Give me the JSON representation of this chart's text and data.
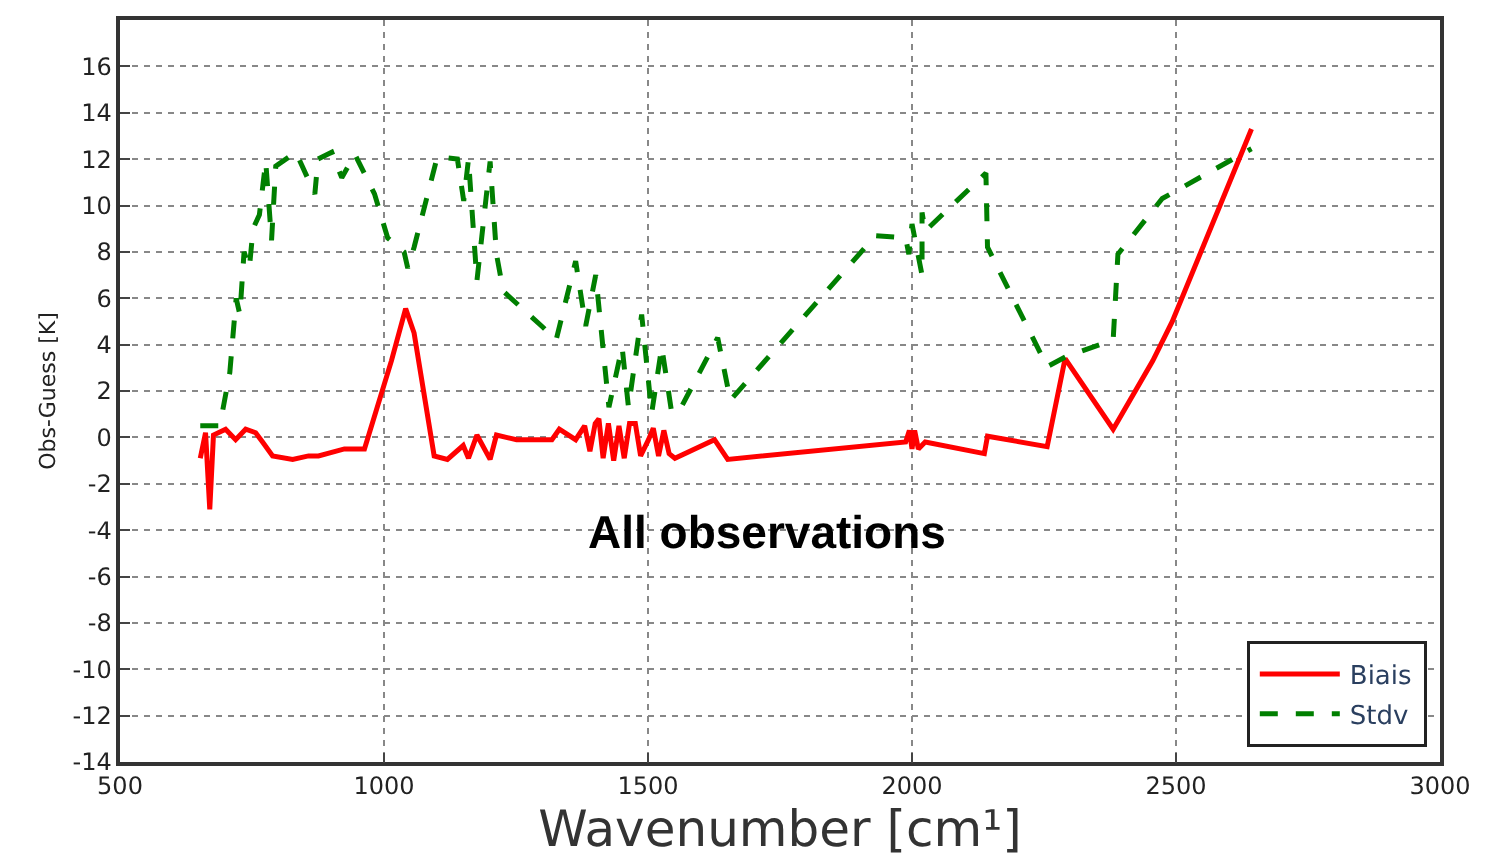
{
  "chart_data": {
    "type": "line",
    "xlabel": "Wavenumber [cm¹]",
    "ylabel": "Obs-Guess [K]",
    "annotations": [
      "All observations"
    ],
    "xlim": [
      500,
      3000
    ],
    "xticks": [
      500,
      1000,
      1500,
      2000,
      2500,
      3000
    ],
    "ylim": [
      -14,
      18
    ],
    "yticks": [
      -14,
      -12,
      -10,
      -8,
      -6,
      -4,
      -2,
      0,
      2,
      4,
      6,
      8,
      10,
      12,
      14,
      16
    ],
    "grid": true,
    "legend": "bottom right",
    "series": [
      {
        "name": "Biais",
        "color": "#ff0000",
        "line_style": "solid",
        "x": [
          652,
          662,
          670,
          677,
          700,
          719,
          738,
          757,
          770,
          789,
          827,
          857,
          876,
          925,
          963,
          1014,
          1041,
          1057,
          1095,
          1120,
          1150,
          1160,
          1176,
          1201,
          1213,
          1251,
          1318,
          1332,
          1363,
          1380,
          1390,
          1400,
          1407,
          1415,
          1425,
          1435,
          1445,
          1455,
          1465,
          1476,
          1486,
          1501,
          1510,
          1520,
          1530,
          1540,
          1551,
          1626,
          1651,
          1988,
          1995,
          2000,
          2005,
          2012,
          2025,
          2137,
          2143,
          2256,
          2290,
          2381,
          2456,
          2493,
          2643
        ],
        "values": [
          -0.9,
          0.2,
          -3.1,
          0.1,
          0.35,
          -0.1,
          0.35,
          0.2,
          -0.2,
          -0.8,
          -0.95,
          -0.8,
          -0.8,
          -0.5,
          -0.5,
          3.3,
          5.55,
          4.5,
          -0.8,
          -0.95,
          -0.35,
          -0.9,
          0.1,
          -0.95,
          0.1,
          -0.1,
          -0.1,
          0.35,
          -0.1,
          0.5,
          -0.6,
          0.6,
          0.8,
          -0.9,
          0.6,
          -1.0,
          0.5,
          -0.9,
          0.6,
          0.6,
          -0.8,
          -0.1,
          0.4,
          -0.8,
          0.3,
          -0.7,
          -0.9,
          -0.1,
          -0.95,
          -0.2,
          0.3,
          -0.5,
          0.3,
          -0.5,
          -0.2,
          -0.7,
          0.05,
          -0.4,
          3.4,
          0.35,
          3.3,
          5.0,
          13.3
        ]
      },
      {
        "name": "Stdv",
        "color": "#007f00",
        "line_style": "dashed",
        "x": [
          652,
          689,
          708,
          720,
          727,
          735,
          745,
          752,
          764,
          776,
          787,
          795,
          833,
          869,
          875,
          901,
          920,
          945,
          982,
          1007,
          1038,
          1045,
          1057,
          1101,
          1139,
          1151,
          1160,
          1176,
          1201,
          1213,
          1226,
          1301,
          1326,
          1363,
          1382,
          1401,
          1426,
          1451,
          1463,
          1488,
          1507,
          1526,
          1545,
          1563,
          1632,
          1656,
          1931,
          1988,
          1994,
          2000,
          2019,
          2019,
          2025,
          2140,
          2143,
          2256,
          2293,
          2381,
          2390,
          2474,
          2643
        ],
        "values": [
          0.5,
          0.5,
          2.8,
          6.0,
          5.3,
          8.0,
          7.3,
          9.0,
          9.6,
          11.9,
          8.5,
          11.7,
          12.3,
          10.5,
          12.0,
          12.3,
          11.2,
          12.2,
          10.5,
          8.6,
          8.0,
          7.3,
          8.2,
          12.1,
          12.0,
          10.2,
          12.0,
          6.75,
          11.9,
          7.9,
          6.3,
          4.75,
          4.2,
          7.6,
          4.8,
          7.0,
          1.3,
          3.9,
          1.3,
          5.3,
          1.05,
          3.9,
          1.05,
          1.3,
          4.3,
          1.6,
          8.7,
          8.6,
          7.9,
          9.2,
          7.0,
          9.7,
          8.9,
          11.4,
          8.2,
          3.05,
          3.5,
          4.2,
          7.9,
          10.3,
          12.45
        ]
      }
    ]
  }
}
